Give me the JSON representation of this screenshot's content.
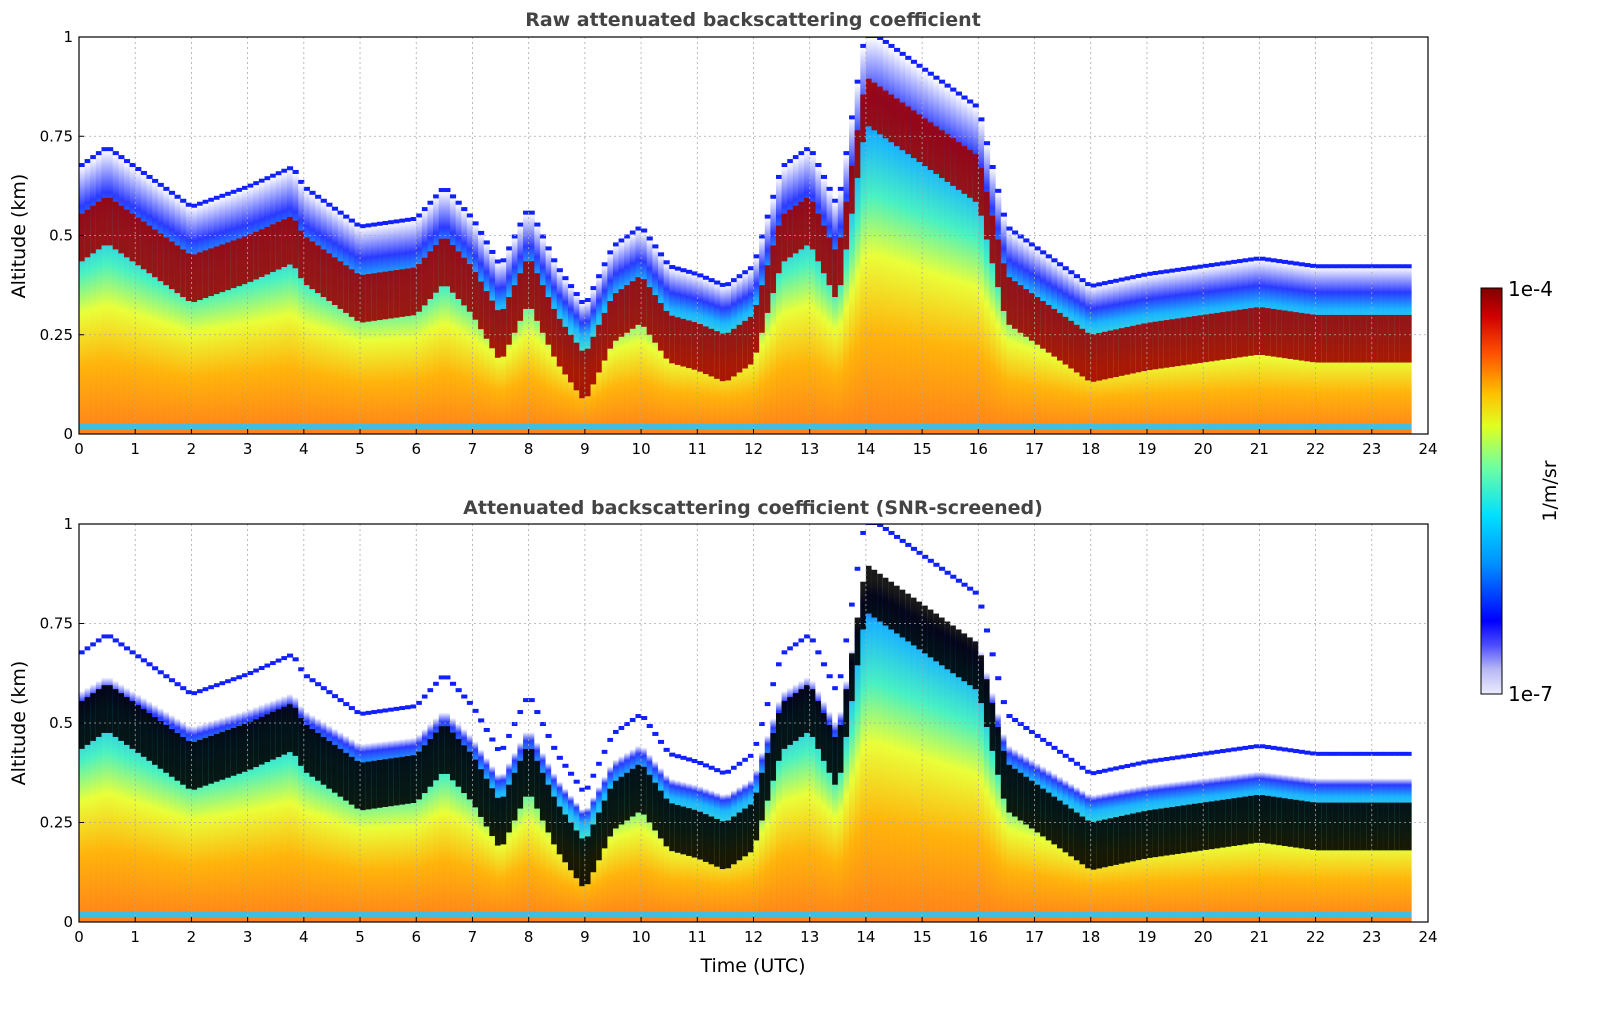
{
  "chart_data": {
    "type": "heatmap",
    "shared_xlabel": "Time (UTC)",
    "colorbar": {
      "label": "1/m/sr",
      "min_label": "1e-7",
      "max_label": "1e-4",
      "scale": "log",
      "colormap": "jet (white/lavender at low end, dark red at high end)"
    },
    "panels": [
      {
        "title": "Raw attenuated backscattering coefficient",
        "ylabel": "Altitude (km)",
        "xlim": [
          0,
          24
        ],
        "ylim": [
          0,
          1
        ],
        "xticks": [
          "0",
          "1",
          "2",
          "3",
          "4",
          "5",
          "6",
          "7",
          "8",
          "9",
          "10",
          "11",
          "12",
          "13",
          "14",
          "15",
          "16",
          "17",
          "18",
          "19",
          "20",
          "21",
          "22",
          "23",
          "24"
        ],
        "yticks": [
          "0",
          "0.25",
          "0.5",
          "0.75",
          "1"
        ],
        "grid": true,
        "boundary_layer_top_km": {
          "time_h": [
            0,
            0.5,
            1,
            2,
            3,
            3.8,
            4,
            5,
            6,
            6.5,
            7,
            7.5,
            8,
            8.5,
            9,
            9.5,
            10,
            10.5,
            11,
            11.5,
            12,
            12.5,
            13,
            13.5,
            14,
            14.5,
            15,
            15.5,
            16,
            16.5,
            17,
            17.5,
            18,
            19,
            20,
            21,
            22,
            23,
            23.7
          ],
          "altitude_km": [
            0.55,
            0.6,
            0.55,
            0.45,
            0.5,
            0.55,
            0.5,
            0.4,
            0.42,
            0.5,
            0.42,
            0.3,
            0.45,
            0.3,
            0.2,
            0.35,
            0.4,
            0.3,
            0.28,
            0.25,
            0.3,
            0.55,
            0.6,
            0.45,
            0.9,
            0.85,
            0.8,
            0.75,
            0.7,
            0.4,
            0.35,
            0.3,
            0.25,
            0.28,
            0.3,
            0.32,
            0.3,
            0.3,
            0.3
          ]
        }
      },
      {
        "title": "Attenuated backscattering coefficient (SNR-screened)",
        "ylabel": "Altitude (km)",
        "xlim": [
          0,
          24
        ],
        "ylim": [
          0,
          1
        ],
        "xticks": [
          "0",
          "1",
          "2",
          "3",
          "4",
          "5",
          "6",
          "7",
          "8",
          "9",
          "10",
          "11",
          "12",
          "13",
          "14",
          "15",
          "16",
          "17",
          "18",
          "19",
          "20",
          "21",
          "22",
          "23",
          "24"
        ],
        "yticks": [
          "0",
          "0.25",
          "0.5",
          "0.75",
          "1"
        ],
        "grid": true,
        "screened_color": "black",
        "boundary_layer_top_km": {
          "time_h": [
            0,
            0.5,
            1,
            2,
            3,
            3.8,
            4,
            5,
            6,
            6.5,
            7,
            7.5,
            8,
            8.5,
            9,
            9.5,
            10,
            10.5,
            11,
            11.5,
            12,
            12.5,
            13,
            13.5,
            14,
            14.5,
            15,
            15.5,
            16,
            16.5,
            17,
            17.5,
            18,
            19,
            20,
            21,
            22,
            23,
            23.7
          ],
          "altitude_km": [
            0.55,
            0.6,
            0.55,
            0.45,
            0.5,
            0.55,
            0.5,
            0.4,
            0.42,
            0.5,
            0.42,
            0.3,
            0.45,
            0.3,
            0.2,
            0.35,
            0.4,
            0.3,
            0.28,
            0.25,
            0.3,
            0.55,
            0.6,
            0.45,
            0.9,
            0.85,
            0.8,
            0.75,
            0.7,
            0.4,
            0.35,
            0.3,
            0.25,
            0.28,
            0.3,
            0.32,
            0.3,
            0.3,
            0.3
          ]
        }
      }
    ]
  }
}
